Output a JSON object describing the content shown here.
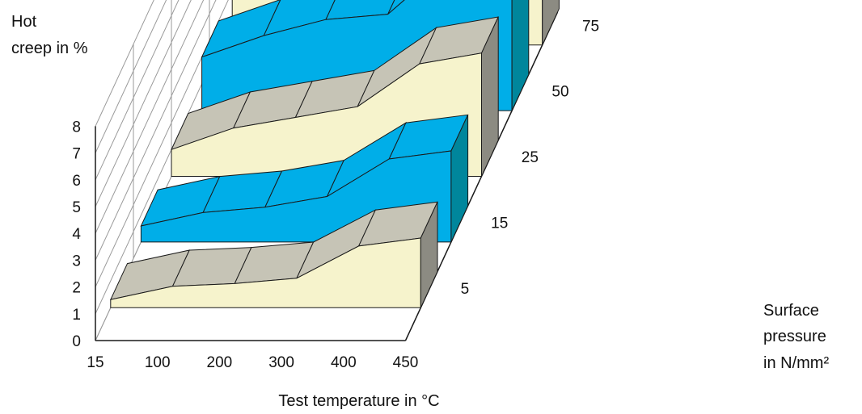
{
  "chart_data": {
    "type": "area",
    "title": "",
    "ylabel_lines": [
      "Hot",
      "creep in %"
    ],
    "xlabel": "Test temperature in °C",
    "zlabel_lines": [
      "Surface",
      "pressure",
      "in N/mm²"
    ],
    "x": [
      15,
      100,
      200,
      300,
      400,
      450
    ],
    "x_tick_labels": [
      "15",
      "100",
      "200",
      "300",
      "400",
      "450"
    ],
    "y_tick_labels": [
      "0",
      "1",
      "2",
      "3",
      "4",
      "5",
      "6",
      "7",
      "8"
    ],
    "z_tick_labels": [
      "5",
      "15",
      "25",
      "50",
      "75"
    ],
    "ylim": [
      0,
      8
    ],
    "grid": true,
    "series": [
      {
        "name": "5",
        "values": [
          0.3,
          0.8,
          0.9,
          1.1,
          2.3,
          2.6
        ]
      },
      {
        "name": "15",
        "values": [
          0.6,
          1.1,
          1.3,
          1.7,
          3.1,
          3.4
        ]
      },
      {
        "name": "25",
        "values": [
          1.0,
          1.8,
          2.2,
          2.6,
          4.2,
          4.6
        ]
      },
      {
        "name": "50",
        "values": [
          2.0,
          2.8,
          3.4,
          3.6,
          5.6,
          6.0
        ]
      },
      {
        "name": "75",
        "values": [
          2.4,
          3.8,
          4.6,
          4.8,
          7.2,
          7.6
        ]
      }
    ],
    "colors": {
      "pale": "#f6f3cc",
      "pale_top": "#c6c4b6",
      "pale_side": "#8c8b82",
      "blue": "#00aee8",
      "blue_side": "#00869c",
      "edge": "#1a1a1a",
      "grid": "#9a9a9a"
    }
  }
}
